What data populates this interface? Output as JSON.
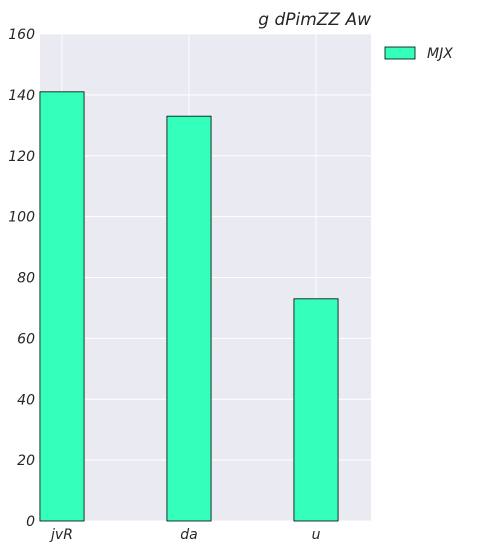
{
  "chart_data": {
    "type": "bar",
    "title": "g dPimZZ Aw",
    "xlabel": "",
    "ylabel": "",
    "categories": [
      "jvR",
      "da",
      "u"
    ],
    "series": [
      {
        "name": "MJX",
        "values": [
          141,
          133,
          73
        ],
        "color": "#33ffbb"
      }
    ],
    "ylim": [
      0,
      160
    ],
    "yticks": [
      "0",
      "20",
      "40",
      "60",
      "80",
      "100",
      "120",
      "140",
      "160"
    ],
    "grid": true,
    "legend_position": "upper-right-outside",
    "colors": {
      "plot_bg": "#eaeaf2",
      "grid": "#ffffff",
      "bar_edge": "#000000"
    }
  }
}
